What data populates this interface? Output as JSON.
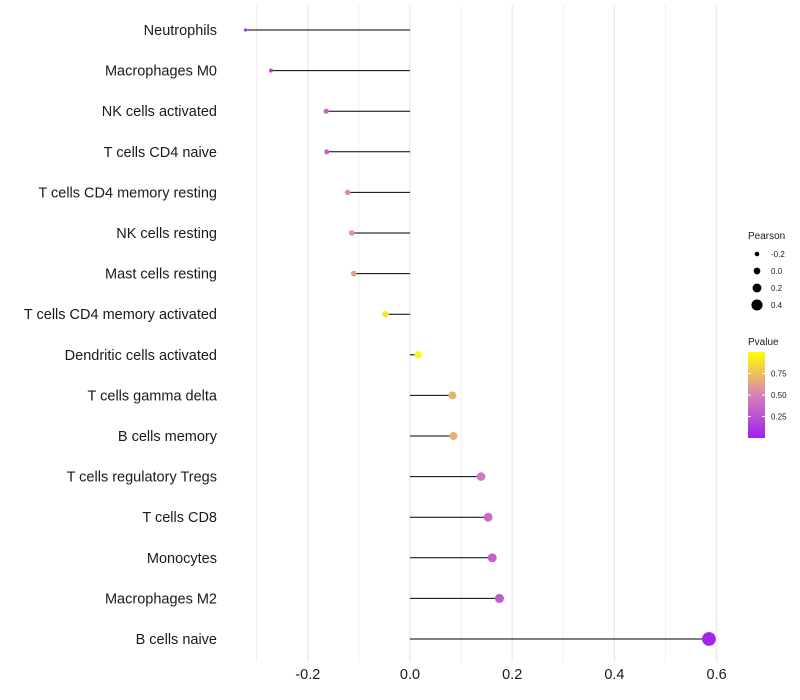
{
  "chart_data": {
    "type": "lollipop",
    "title": "",
    "xlabel": "",
    "ylabel": "",
    "xlim": [
      -0.3,
      0.6
    ],
    "xticks": [
      -0.2,
      0.0,
      0.2,
      0.4,
      0.6
    ],
    "xtick_labels": [
      "-0.2",
      "0.0",
      "0.2",
      "0.4",
      "0.6"
    ],
    "grid": true,
    "categories": [
      "Neutrophils",
      "Macrophages M0",
      "NK cells activated",
      "T cells CD4 naive",
      "T cells CD4 memory resting",
      "NK cells resting",
      "Mast cells resting",
      "T cells CD4 memory activated",
      "Dendritic cells activated",
      "T cells gamma delta",
      "B cells memory",
      "T cells regulatory  Tregs",
      "T cells CD8",
      "Monocytes",
      "Macrophages M2",
      "B cells naive"
    ],
    "pearson": [
      -0.322,
      -0.272,
      -0.164,
      -0.163,
      -0.122,
      -0.114,
      -0.11,
      -0.048,
      0.016,
      0.083,
      0.085,
      0.139,
      0.153,
      0.161,
      0.175,
      0.585
    ],
    "pvalue": [
      0.1,
      0.15,
      0.35,
      0.36,
      0.55,
      0.6,
      0.62,
      0.9,
      0.97,
      0.7,
      0.68,
      0.45,
      0.38,
      0.34,
      0.3,
      0.02
    ],
    "size_legend": {
      "title": "Pearson",
      "labels": [
        "-0.2",
        "0.0",
        "0.2",
        "0.4"
      ],
      "values": [
        -0.2,
        0.0,
        0.2,
        0.4
      ]
    },
    "color_legend": {
      "title": "Pvalue",
      "labels": [
        "0.75",
        "0.50",
        "0.25"
      ],
      "values": [
        0.75,
        0.5,
        0.25
      ],
      "low_color": "#a020f0",
      "mid_color": "#d682b8",
      "high_color": "#ffff00",
      "range": [
        0.0,
        1.0
      ]
    },
    "point_size_range": [
      -0.35,
      0.6
    ],
    "stem_color": "#000000",
    "grid_color": "#ebebeb"
  }
}
